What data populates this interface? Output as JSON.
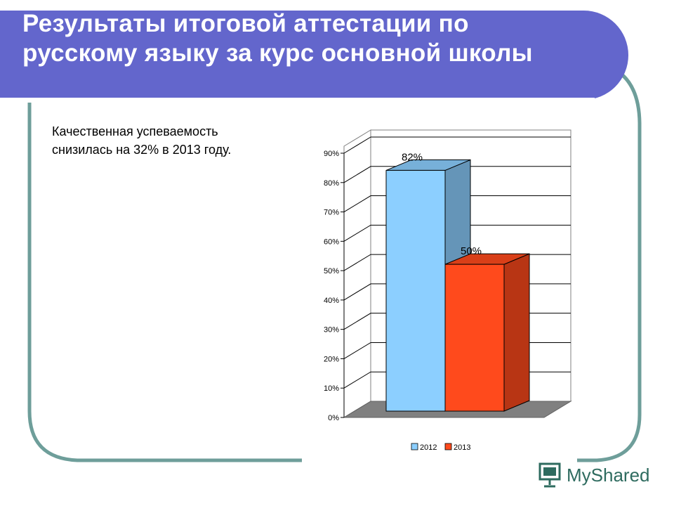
{
  "slide": {
    "title": "Результаты итоговой аттестации по русскому языку за курс основной школы",
    "note": "Качественная успеваемость снизилась на 32% в 2013 году."
  },
  "chart_data": {
    "type": "bar",
    "categories": [
      "2012",
      "2013"
    ],
    "values": [
      82,
      50
    ],
    "data_labels": [
      "82%",
      "50%"
    ],
    "y_ticks": [
      "0%",
      "10%",
      "20%",
      "30%",
      "40%",
      "50%",
      "60%",
      "70%",
      "80%",
      "90%"
    ],
    "ylim": [
      0,
      90
    ],
    "grid": true,
    "three_d": true,
    "legend": {
      "placement": "bottom",
      "entries": [
        "2012",
        "2013"
      ]
    },
    "colors": [
      "#8ccfff",
      "#ff4a1c"
    ]
  },
  "watermark": {
    "text": "MyShared",
    "icon": "presentation-board-icon"
  },
  "theme": {
    "banner": "#6366cc",
    "frame": "#6e9e9a"
  }
}
